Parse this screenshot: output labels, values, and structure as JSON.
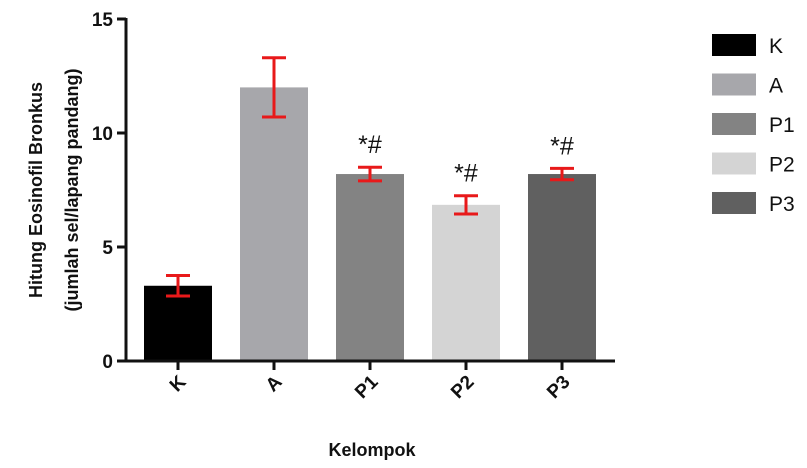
{
  "chart_data": {
    "type": "bar",
    "title": "",
    "xlabel": "Kelompok",
    "ylabel_line1": "Hitung Eosinofil Bronkus",
    "ylabel_line2": "(jumlah sel/lapang pandang)",
    "ylim": [
      0,
      15
    ],
    "yticks": [
      0,
      5,
      10,
      15
    ],
    "categories": [
      "K",
      "A",
      "P1",
      "P2",
      "P3"
    ],
    "values": [
      3.3,
      12.0,
      8.2,
      6.85,
      8.2
    ],
    "errors": [
      0.45,
      1.3,
      0.3,
      0.4,
      0.25
    ],
    "annotations": [
      "",
      "",
      "*#",
      "*#",
      "*#"
    ],
    "colors": [
      "#000000",
      "#a7a7ab",
      "#838383",
      "#d4d4d4",
      "#606060"
    ],
    "error_bar_color": "#e8191a",
    "legend": {
      "position": "right",
      "entries": [
        "K",
        "A",
        "P1",
        "P2",
        "P3"
      ]
    },
    "grid": false
  }
}
